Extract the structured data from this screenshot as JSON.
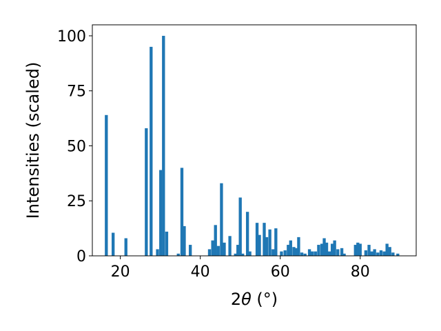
{
  "chart_data": {
    "type": "bar",
    "title": "",
    "xlabel_main": "2",
    "xlabel_theta": "θ",
    "xlabel_unit": " (°)",
    "ylabel": "Intensities (scaled)",
    "xlim": [
      13,
      94
    ],
    "ylim": [
      0,
      105
    ],
    "xticks": [
      20,
      40,
      60,
      80
    ],
    "yticks": [
      0,
      25,
      50,
      75,
      100
    ],
    "grid": false,
    "bar_color": "#1f77b4",
    "bar_width": 0.75,
    "x": [
      16.5,
      18.2,
      21.4,
      26.5,
      27.7,
      29.3,
      30.1,
      30.8,
      31.6,
      34.5,
      35.4,
      36.0,
      37.5,
      42.3,
      43.1,
      43.8,
      44.5,
      45.3,
      46.0,
      47.4,
      48.8,
      49.4,
      50.0,
      50.6,
      51.8,
      52.4,
      54.2,
      54.8,
      56.0,
      56.6,
      57.4,
      58.2,
      58.9,
      60.3,
      61.2,
      62.0,
      62.6,
      63.4,
      63.9,
      64.6,
      65.4,
      66.2,
      67.3,
      68.0,
      68.8,
      69.6,
      70.4,
      71.0,
      71.6,
      72.3,
      73.0,
      73.6,
      74.4,
      75.4,
      76.0,
      78.8,
      79.4,
      80.0,
      81.4,
      82.2,
      82.9,
      83.6,
      84.4,
      85.2,
      86.0,
      86.7,
      87.4,
      88.2,
      89.4
    ],
    "values": [
      64,
      10.5,
      8,
      58,
      95,
      3,
      39,
      100,
      11,
      1,
      40,
      13.5,
      5,
      3,
      7,
      14,
      4.5,
      33,
      6,
      9,
      1,
      5,
      26.5,
      1,
      20,
      2,
      15,
      9.5,
      15,
      8.5,
      12,
      3,
      12.5,
      2,
      2.5,
      5,
      7,
      4,
      3.5,
      8.5,
      1.5,
      1,
      3,
      2,
      2,
      5,
      5.5,
      8,
      6,
      2,
      5.5,
      7,
      3,
      3.5,
      1,
      5,
      6,
      5.5,
      2.5,
      5,
      2,
      3,
      1.5,
      2.5,
      2,
      5.5,
      4,
      1.5,
      1
    ]
  }
}
